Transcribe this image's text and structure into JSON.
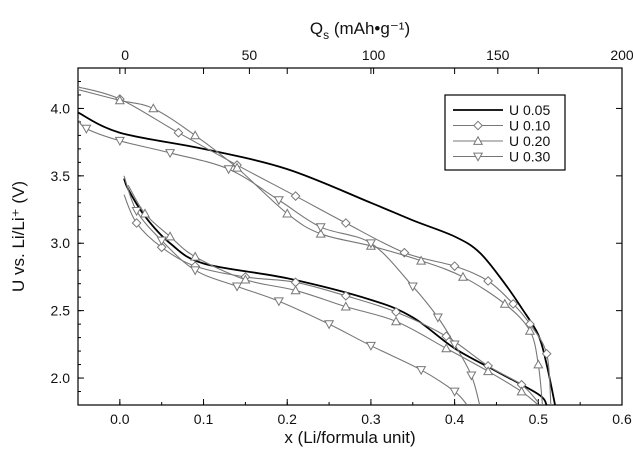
{
  "chart_data": {
    "type": "line",
    "xlabel": "x (Li/formula unit)",
    "ylabel": "U vs. Li/Li⁺ (V)",
    "x2label": "Qs (mAh•g⁻¹)",
    "xlim": [
      -0.05,
      0.6
    ],
    "ylim": [
      1.8,
      4.3
    ],
    "x2lim": [
      -19,
      200
    ],
    "x_ticks": [
      0.1,
      0.2,
      0.3,
      0.4,
      0.5,
      0.6,
      0.0
    ],
    "x_tick_labels": [
      "0.1",
      "0.2",
      "0.3",
      "0.4",
      "0.5",
      "0.6",
      "0.0"
    ],
    "y_ticks": [
      2.0,
      2.5,
      3.0,
      3.5,
      4.0
    ],
    "y_tick_labels": [
      "2.0",
      "2.5",
      "3.0",
      "3.5",
      "4.0"
    ],
    "x2_ticks": [
      0,
      50,
      100,
      150,
      200
    ],
    "x2_tick_labels": [
      "0",
      "50",
      "100",
      "150",
      "200"
    ],
    "legend_position": "top-right",
    "series": [
      {
        "name": "U 0.05",
        "marker": "none",
        "color": "#000000",
        "charge": [
          [
            -0.05,
            3.97
          ],
          [
            0.0,
            3.82
          ],
          [
            0.1,
            3.7
          ],
          [
            0.2,
            3.55
          ],
          [
            0.3,
            3.3
          ],
          [
            0.35,
            3.17
          ],
          [
            0.4,
            3.05
          ],
          [
            0.43,
            2.93
          ],
          [
            0.46,
            2.7
          ],
          [
            0.48,
            2.52
          ],
          [
            0.5,
            2.32
          ],
          [
            0.51,
            2.1
          ],
          [
            0.52,
            1.8
          ]
        ],
        "discharge": [
          [
            0.005,
            3.48
          ],
          [
            0.01,
            3.4
          ],
          [
            0.03,
            3.2
          ],
          [
            0.06,
            3.0
          ],
          [
            0.1,
            2.85
          ],
          [
            0.2,
            2.74
          ],
          [
            0.3,
            2.58
          ],
          [
            0.35,
            2.45
          ],
          [
            0.4,
            2.22
          ],
          [
            0.45,
            2.05
          ],
          [
            0.5,
            1.88
          ],
          [
            0.51,
            1.8
          ]
        ]
      },
      {
        "name": "U 0.10",
        "marker": "diamond",
        "color": "#777777",
        "charge": [
          [
            -0.05,
            4.16
          ],
          [
            0.0,
            4.07
          ],
          [
            0.07,
            3.82
          ],
          [
            0.14,
            3.58
          ],
          [
            0.21,
            3.35
          ],
          [
            0.27,
            3.15
          ],
          [
            0.34,
            2.93
          ],
          [
            0.4,
            2.83
          ],
          [
            0.44,
            2.72
          ],
          [
            0.47,
            2.55
          ],
          [
            0.49,
            2.4
          ],
          [
            0.51,
            2.18
          ],
          [
            0.515,
            1.8
          ]
        ],
        "discharge": [
          [
            0.005,
            3.36
          ],
          [
            0.02,
            3.15
          ],
          [
            0.05,
            2.97
          ],
          [
            0.09,
            2.83
          ],
          [
            0.15,
            2.75
          ],
          [
            0.21,
            2.71
          ],
          [
            0.27,
            2.61
          ],
          [
            0.33,
            2.49
          ],
          [
            0.39,
            2.31
          ],
          [
            0.44,
            2.09
          ],
          [
            0.48,
            1.95
          ],
          [
            0.5,
            1.82
          ]
        ]
      },
      {
        "name": "U 0.20",
        "marker": "triangle-up",
        "color": "#777777",
        "charge": [
          [
            -0.05,
            4.14
          ],
          [
            0.0,
            4.06
          ],
          [
            0.04,
            4.0
          ],
          [
            0.09,
            3.8
          ],
          [
            0.14,
            3.56
          ],
          [
            0.2,
            3.22
          ],
          [
            0.24,
            3.07
          ],
          [
            0.3,
            2.98
          ],
          [
            0.36,
            2.87
          ],
          [
            0.41,
            2.75
          ],
          [
            0.46,
            2.55
          ],
          [
            0.49,
            2.35
          ],
          [
            0.5,
            2.1
          ],
          [
            0.505,
            1.8
          ]
        ],
        "discharge": [
          [
            0.01,
            3.43
          ],
          [
            0.03,
            3.22
          ],
          [
            0.06,
            3.05
          ],
          [
            0.09,
            2.9
          ],
          [
            0.15,
            2.73
          ],
          [
            0.21,
            2.65
          ],
          [
            0.27,
            2.53
          ],
          [
            0.33,
            2.42
          ],
          [
            0.39,
            2.22
          ],
          [
            0.44,
            2.05
          ],
          [
            0.48,
            1.9
          ],
          [
            0.5,
            1.8
          ]
        ]
      },
      {
        "name": "U 0.30",
        "marker": "triangle-down",
        "color": "#777777",
        "charge": [
          [
            -0.05,
            3.92
          ],
          [
            -0.04,
            3.85
          ],
          [
            0.0,
            3.76
          ],
          [
            0.06,
            3.67
          ],
          [
            0.13,
            3.55
          ],
          [
            0.19,
            3.32
          ],
          [
            0.24,
            3.12
          ],
          [
            0.3,
            3.0
          ],
          [
            0.35,
            2.68
          ],
          [
            0.38,
            2.45
          ],
          [
            0.4,
            2.25
          ],
          [
            0.42,
            2.02
          ],
          [
            0.43,
            1.8
          ]
        ],
        "discharge": [
          [
            0.005,
            3.5
          ],
          [
            0.02,
            3.24
          ],
          [
            0.05,
            3.02
          ],
          [
            0.09,
            2.8
          ],
          [
            0.14,
            2.68
          ],
          [
            0.19,
            2.57
          ],
          [
            0.25,
            2.4
          ],
          [
            0.3,
            2.24
          ],
          [
            0.36,
            2.06
          ],
          [
            0.4,
            1.9
          ],
          [
            0.415,
            1.8
          ]
        ]
      }
    ]
  }
}
